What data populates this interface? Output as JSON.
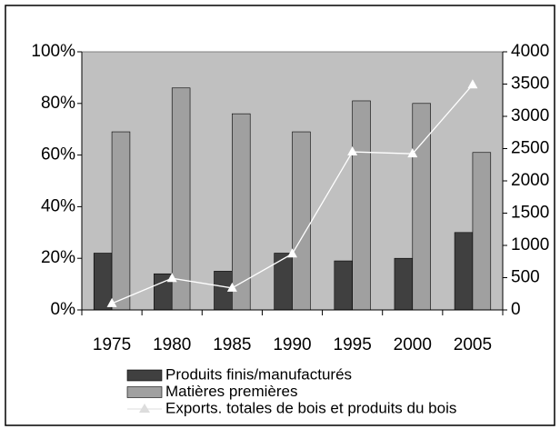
{
  "chart_data": {
    "type": "bar",
    "categories": [
      "1975",
      "1980",
      "1985",
      "1990",
      "1995",
      "2000",
      "2005"
    ],
    "series": [
      {
        "name": "Produits finis/manufacturés",
        "color": "#404040",
        "values": [
          22,
          14,
          15,
          22,
          19,
          20,
          30
        ]
      },
      {
        "name": "Matières premières",
        "color": "#a0a0a0",
        "values": [
          69,
          86,
          76,
          69,
          81,
          80,
          61
        ]
      },
      {
        "name": "Exports. totales de bois et produits du bois",
        "color": "#ffffff",
        "type": "line",
        "axis": "y2",
        "values": [
          100,
          490,
          340,
          870,
          2450,
          2420,
          3490
        ]
      }
    ],
    "ylim": [
      0,
      100
    ],
    "yticks": [
      {
        "value": 0,
        "label": "0%"
      },
      {
        "value": 20,
        "label": "20%"
      },
      {
        "value": 40,
        "label": "40%"
      },
      {
        "value": 60,
        "label": "60%"
      },
      {
        "value": 80,
        "label": "80%"
      },
      {
        "value": 100,
        "label": "100%"
      }
    ],
    "y2lim": [
      0,
      4000
    ],
    "y2ticks": [
      0,
      500,
      1000,
      1500,
      2000,
      2500,
      3000,
      3500,
      4000
    ],
    "plot_background": "#c0c0c0",
    "grid": false
  }
}
